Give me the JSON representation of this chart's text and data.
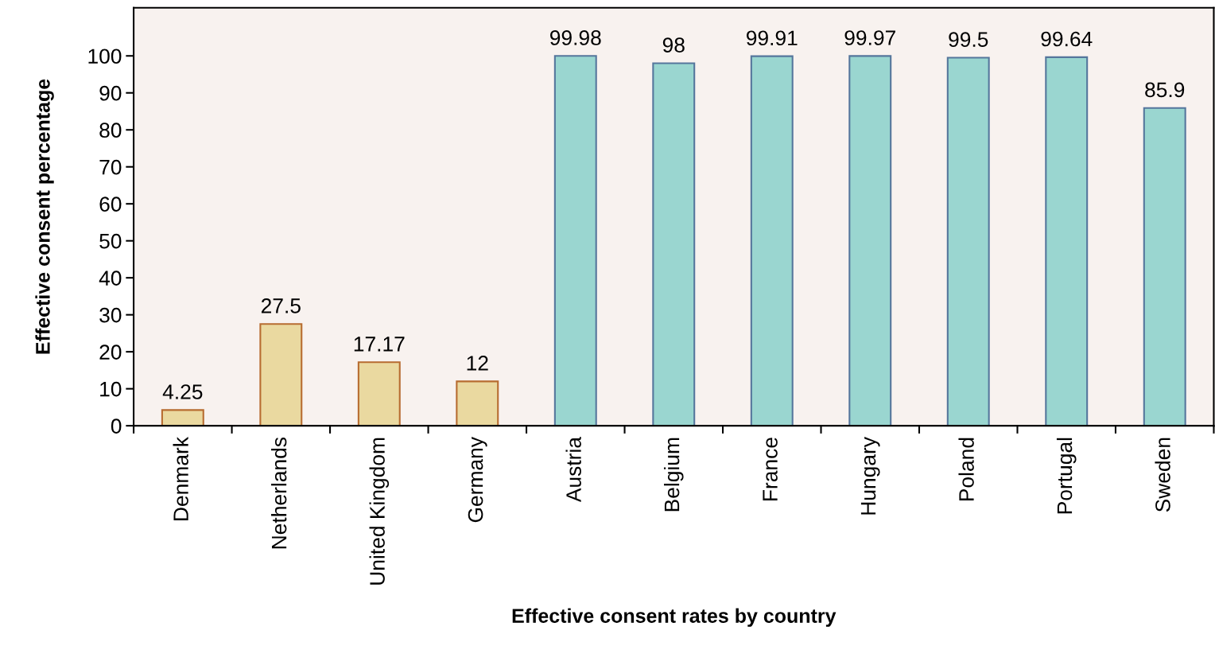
{
  "chart_data": {
    "type": "bar",
    "xlabel": "Effective consent rates by country",
    "ylabel": "Effective consent percentage",
    "categories": [
      "Denmark",
      "Netherlands",
      "United Kingdom",
      "Germany",
      "Austria",
      "Belgium",
      "France",
      "Hungary",
      "Poland",
      "Portugal",
      "Sweden"
    ],
    "values": [
      4.25,
      27.5,
      17.17,
      12,
      99.98,
      98,
      99.91,
      99.97,
      99.5,
      99.64,
      85.9
    ],
    "colors": [
      "#ead9a0",
      "#ead9a0",
      "#ead9a0",
      "#ead9a0",
      "#9ad6d0",
      "#9ad6d0",
      "#9ad6d0",
      "#9ad6d0",
      "#9ad6d0",
      "#9ad6d0",
      "#9ad6d0"
    ],
    "ylim": [
      0,
      113
    ],
    "yticks": [
      0,
      10,
      20,
      30,
      40,
      50,
      60,
      70,
      80,
      90,
      100
    ],
    "data_labels": true,
    "grid": false,
    "legend": false
  }
}
